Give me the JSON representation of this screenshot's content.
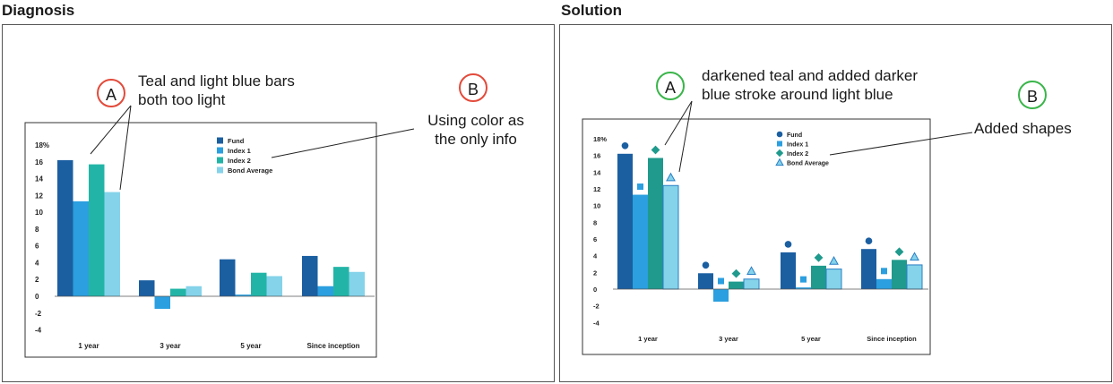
{
  "left": {
    "section_title": "Diagnosis",
    "annotation_a": {
      "letter": "A",
      "text_lines": [
        "Teal and light blue bars",
        "both too light"
      ]
    },
    "annotation_b": {
      "letter": "B",
      "text_lines": [
        "Using color as",
        "the only info"
      ]
    }
  },
  "right": {
    "section_title": "Solution",
    "annotation_a": {
      "letter": "A",
      "text_lines": [
        "darkened teal and added darker",
        "blue stroke around light blue"
      ]
    },
    "annotation_b": {
      "letter": "B",
      "text_lines": [
        "Added shapes"
      ]
    }
  },
  "colors": {
    "fund": "#1b5fa1",
    "index1": "#2b9fdf",
    "index2_light": "#22b5a7",
    "index2_dark": "#1f9a8d",
    "bond": "#84d3ea",
    "bond_stroke": "#2a7fc6",
    "circle_red": "#e34a3a",
    "circle_green": "#3ab54a"
  },
  "chart_data": [
    {
      "type": "bar",
      "categories": [
        "1 year",
        "3 year",
        "5 year",
        "Since inception"
      ],
      "series": [
        {
          "name": "Fund",
          "values": [
            16.2,
            1.9,
            4.4,
            4.8
          ]
        },
        {
          "name": "Index 1",
          "values": [
            11.3,
            -1.5,
            0.2,
            1.2
          ]
        },
        {
          "name": "Index 2",
          "values": [
            15.7,
            0.9,
            2.8,
            3.5
          ]
        },
        {
          "name": "Bond Average",
          "values": [
            12.4,
            1.2,
            2.4,
            2.9
          ]
        }
      ],
      "y_ticks": [
        "18%",
        "16",
        "14",
        "12",
        "10",
        "8",
        "6",
        "4",
        "2",
        "0",
        "-2",
        "-4"
      ],
      "ylim": [
        -4,
        18
      ],
      "legend_position": "top-right",
      "markers": false
    },
    {
      "type": "bar",
      "categories": [
        "1 year",
        "3 year",
        "5 year",
        "Since inception"
      ],
      "series": [
        {
          "name": "Fund",
          "values": [
            16.2,
            1.9,
            4.4,
            4.8
          ],
          "marker": "circle"
        },
        {
          "name": "Index 1",
          "values": [
            11.3,
            -1.5,
            0.2,
            1.2
          ],
          "marker": "square"
        },
        {
          "name": "Index 2",
          "values": [
            15.7,
            0.9,
            2.8,
            3.5
          ],
          "marker": "diamond"
        },
        {
          "name": "Bond Average",
          "values": [
            12.4,
            1.2,
            2.4,
            2.9
          ],
          "marker": "triangle"
        }
      ],
      "y_ticks": [
        "18%",
        "16",
        "14",
        "12",
        "10",
        "8",
        "6",
        "4",
        "2",
        "0",
        "-2",
        "-4"
      ],
      "ylim": [
        -4,
        18
      ],
      "legend_position": "top-right",
      "markers": true
    }
  ]
}
